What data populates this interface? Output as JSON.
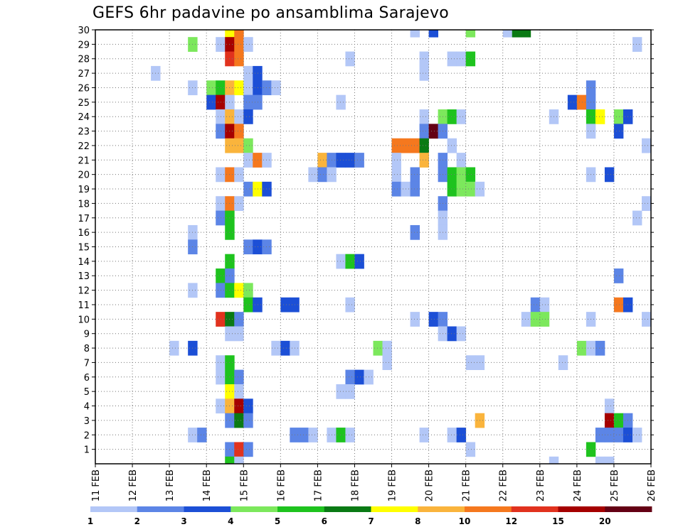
{
  "chart_data": {
    "type": "heatmap",
    "title": "GEFS 6hr padavine po ansamblima Sarajevo",
    "xlabel": "",
    "ylabel": "",
    "x_ticks": [
      "11 FEB",
      "12 FEB",
      "13 FEB",
      "14 FEB",
      "15 FEB",
      "16 FEB",
      "17 FEB",
      "18 FEB",
      "19 FEB",
      "20 FEB",
      "21 FEB",
      "22 FEB",
      "23 FEB",
      "24 FEB",
      "25 FEB",
      "26 FEB"
    ],
    "y_ticks": [
      1,
      2,
      3,
      4,
      5,
      6,
      7,
      8,
      9,
      10,
      11,
      12,
      13,
      14,
      15,
      16,
      17,
      18,
      19,
      20,
      21,
      22,
      23,
      24,
      25,
      26,
      27,
      28,
      29,
      30
    ],
    "x_range_days": [
      0,
      15
    ],
    "y_range": [
      0,
      30
    ],
    "grid": true,
    "time_step_hours": 6,
    "legend": {
      "position": "bottom",
      "labels": [
        "1",
        "2",
        "3",
        "4",
        "5",
        "6",
        "7",
        "8",
        "10",
        "12",
        "15",
        "20"
      ],
      "colors": [
        "#b3c7f7",
        "#5c85e6",
        "#1c4fd6",
        "#7ce85c",
        "#1ec31e",
        "#0a7a14",
        "#ffff00",
        "#fab43c",
        "#f5781e",
        "#e1321e",
        "#a50000",
        "#640014"
      ]
    },
    "series": [
      {
        "member": 30,
        "cells": [
          [
            14,
            7
          ],
          [
            15,
            9
          ],
          [
            34,
            1
          ],
          [
            36,
            3
          ],
          [
            40,
            4
          ],
          [
            44,
            1
          ],
          [
            45,
            6
          ],
          [
            46,
            6
          ]
        ]
      },
      {
        "member": 29,
        "cells": [
          [
            10,
            4
          ],
          [
            13,
            1
          ],
          [
            14,
            11
          ],
          [
            15,
            9
          ],
          [
            16,
            1
          ],
          [
            58,
            1
          ]
        ]
      },
      {
        "member": 28,
        "cells": [
          [
            14,
            10
          ],
          [
            15,
            9
          ],
          [
            27,
            1
          ],
          [
            35,
            1
          ],
          [
            38,
            1
          ],
          [
            39,
            1
          ],
          [
            40,
            5
          ]
        ]
      },
      {
        "member": 27,
        "cells": [
          [
            6,
            1
          ],
          [
            16,
            1
          ],
          [
            17,
            3
          ],
          [
            35,
            1
          ]
        ]
      },
      {
        "member": 26,
        "cells": [
          [
            10,
            1
          ],
          [
            12,
            4
          ],
          [
            13,
            5
          ],
          [
            14,
            8
          ],
          [
            15,
            7
          ],
          [
            16,
            1
          ],
          [
            17,
            3
          ],
          [
            18,
            2
          ],
          [
            19,
            1
          ],
          [
            53,
            2
          ]
        ]
      },
      {
        "member": 25,
        "cells": [
          [
            12,
            3
          ],
          [
            13,
            11
          ],
          [
            14,
            1
          ],
          [
            16,
            2
          ],
          [
            17,
            2
          ],
          [
            26,
            1
          ],
          [
            51,
            3
          ],
          [
            52,
            9
          ],
          [
            53,
            2
          ]
        ]
      },
      {
        "member": 24,
        "cells": [
          [
            13,
            1
          ],
          [
            14,
            8
          ],
          [
            15,
            1
          ],
          [
            16,
            3
          ],
          [
            35,
            1
          ],
          [
            37,
            4
          ],
          [
            38,
            5
          ],
          [
            39,
            1
          ],
          [
            49,
            1
          ],
          [
            53,
            5
          ],
          [
            54,
            7
          ],
          [
            56,
            4
          ],
          [
            57,
            3
          ]
        ]
      },
      {
        "member": 23,
        "cells": [
          [
            13,
            2
          ],
          [
            14,
            11
          ],
          [
            15,
            9
          ],
          [
            35,
            2
          ],
          [
            36,
            12
          ],
          [
            37,
            2
          ],
          [
            53,
            1
          ],
          [
            56,
            3
          ]
        ]
      },
      {
        "member": 22,
        "cells": [
          [
            14,
            8
          ],
          [
            15,
            8
          ],
          [
            16,
            4
          ],
          [
            32,
            9
          ],
          [
            33,
            9
          ],
          [
            34,
            9
          ],
          [
            35,
            6
          ],
          [
            38,
            1
          ],
          [
            59,
            1
          ]
        ]
      },
      {
        "member": 21,
        "cells": [
          [
            16,
            1
          ],
          [
            17,
            9
          ],
          [
            18,
            1
          ],
          [
            24,
            8
          ],
          [
            25,
            2
          ],
          [
            26,
            3
          ],
          [
            27,
            3
          ],
          [
            28,
            2
          ],
          [
            32,
            1
          ],
          [
            35,
            8
          ],
          [
            37,
            2
          ],
          [
            39,
            1
          ]
        ]
      },
      {
        "member": 20,
        "cells": [
          [
            13,
            1
          ],
          [
            14,
            9
          ],
          [
            15,
            1
          ],
          [
            23,
            1
          ],
          [
            24,
            2
          ],
          [
            25,
            1
          ],
          [
            32,
            1
          ],
          [
            34,
            2
          ],
          [
            37,
            2
          ],
          [
            38,
            5
          ],
          [
            39,
            4
          ],
          [
            40,
            5
          ],
          [
            53,
            1
          ],
          [
            55,
            3
          ]
        ]
      },
      {
        "member": 19,
        "cells": [
          [
            16,
            2
          ],
          [
            17,
            7
          ],
          [
            18,
            3
          ],
          [
            32,
            2
          ],
          [
            33,
            1
          ],
          [
            34,
            2
          ],
          [
            38,
            5
          ],
          [
            39,
            4
          ],
          [
            40,
            4
          ],
          [
            41,
            1
          ]
        ]
      },
      {
        "member": 18,
        "cells": [
          [
            13,
            1
          ],
          [
            14,
            9
          ],
          [
            15,
            1
          ],
          [
            37,
            2
          ],
          [
            59,
            1
          ]
        ]
      },
      {
        "member": 17,
        "cells": [
          [
            13,
            2
          ],
          [
            14,
            5
          ],
          [
            37,
            1
          ],
          [
            58,
            1
          ]
        ]
      },
      {
        "member": 16,
        "cells": [
          [
            10,
            1
          ],
          [
            14,
            5
          ],
          [
            34,
            2
          ],
          [
            37,
            1
          ]
        ]
      },
      {
        "member": 15,
        "cells": [
          [
            10,
            2
          ],
          [
            16,
            2
          ],
          [
            17,
            3
          ],
          [
            18,
            2
          ]
        ]
      },
      {
        "member": 14,
        "cells": [
          [
            14,
            5
          ],
          [
            26,
            1
          ],
          [
            27,
            5
          ],
          [
            28,
            3
          ]
        ]
      },
      {
        "member": 13,
        "cells": [
          [
            13,
            5
          ],
          [
            14,
            2
          ],
          [
            56,
            2
          ]
        ]
      },
      {
        "member": 12,
        "cells": [
          [
            10,
            1
          ],
          [
            13,
            2
          ],
          [
            14,
            5
          ],
          [
            15,
            7
          ],
          [
            16,
            4
          ]
        ]
      },
      {
        "member": 11,
        "cells": [
          [
            16,
            5
          ],
          [
            17,
            3
          ],
          [
            20,
            3
          ],
          [
            21,
            3
          ],
          [
            27,
            1
          ],
          [
            47,
            2
          ],
          [
            48,
            1
          ],
          [
            56,
            9
          ],
          [
            57,
            3
          ]
        ]
      },
      {
        "member": 10,
        "cells": [
          [
            13,
            10
          ],
          [
            14,
            6
          ],
          [
            15,
            2
          ],
          [
            34,
            1
          ],
          [
            36,
            3
          ],
          [
            37,
            2
          ],
          [
            46,
            1
          ],
          [
            47,
            4
          ],
          [
            48,
            4
          ],
          [
            53,
            1
          ],
          [
            59,
            1
          ]
        ]
      },
      {
        "member": 9,
        "cells": [
          [
            14,
            1
          ],
          [
            15,
            1
          ],
          [
            37,
            1
          ],
          [
            38,
            3
          ],
          [
            39,
            1
          ]
        ]
      },
      {
        "member": 8,
        "cells": [
          [
            8,
            1
          ],
          [
            10,
            3
          ],
          [
            19,
            1
          ],
          [
            20,
            3
          ],
          [
            21,
            1
          ],
          [
            30,
            4
          ],
          [
            31,
            1
          ],
          [
            52,
            4
          ],
          [
            53,
            1
          ],
          [
            54,
            2
          ]
        ]
      },
      {
        "member": 7,
        "cells": [
          [
            13,
            1
          ],
          [
            14,
            5
          ],
          [
            31,
            1
          ],
          [
            40,
            1
          ],
          [
            41,
            1
          ],
          [
            50,
            1
          ]
        ]
      },
      {
        "member": 6,
        "cells": [
          [
            13,
            1
          ],
          [
            14,
            5
          ],
          [
            15,
            2
          ],
          [
            27,
            2
          ],
          [
            28,
            3
          ],
          [
            29,
            1
          ]
        ]
      },
      {
        "member": 5,
        "cells": [
          [
            14,
            7
          ],
          [
            15,
            1
          ],
          [
            26,
            1
          ],
          [
            27,
            1
          ]
        ]
      },
      {
        "member": 4,
        "cells": [
          [
            13,
            1
          ],
          [
            14,
            8
          ],
          [
            15,
            11
          ],
          [
            16,
            3
          ],
          [
            55,
            1
          ]
        ]
      },
      {
        "member": 3,
        "cells": [
          [
            14,
            2
          ],
          [
            15,
            6
          ],
          [
            16,
            2
          ],
          [
            41,
            8
          ],
          [
            55,
            11
          ],
          [
            56,
            5
          ],
          [
            57,
            2
          ]
        ]
      },
      {
        "member": 2,
        "cells": [
          [
            10,
            1
          ],
          [
            11,
            2
          ],
          [
            21,
            2
          ],
          [
            22,
            2
          ],
          [
            23,
            1
          ],
          [
            25,
            1
          ],
          [
            26,
            5
          ],
          [
            27,
            1
          ],
          [
            35,
            1
          ],
          [
            38,
            1
          ],
          [
            39,
            3
          ],
          [
            54,
            2
          ],
          [
            55,
            2
          ],
          [
            56,
            2
          ],
          [
            57,
            3
          ],
          [
            58,
            1
          ]
        ]
      },
      {
        "member": 1,
        "cells": [
          [
            14,
            2
          ],
          [
            15,
            10
          ],
          [
            16,
            2
          ],
          [
            40,
            1
          ],
          [
            53,
            5
          ]
        ]
      },
      {
        "member": 0,
        "cells": [
          [
            14,
            5
          ],
          [
            15,
            1
          ],
          [
            49,
            1
          ],
          [
            54,
            1
          ],
          [
            55,
            1
          ]
        ]
      }
    ]
  }
}
